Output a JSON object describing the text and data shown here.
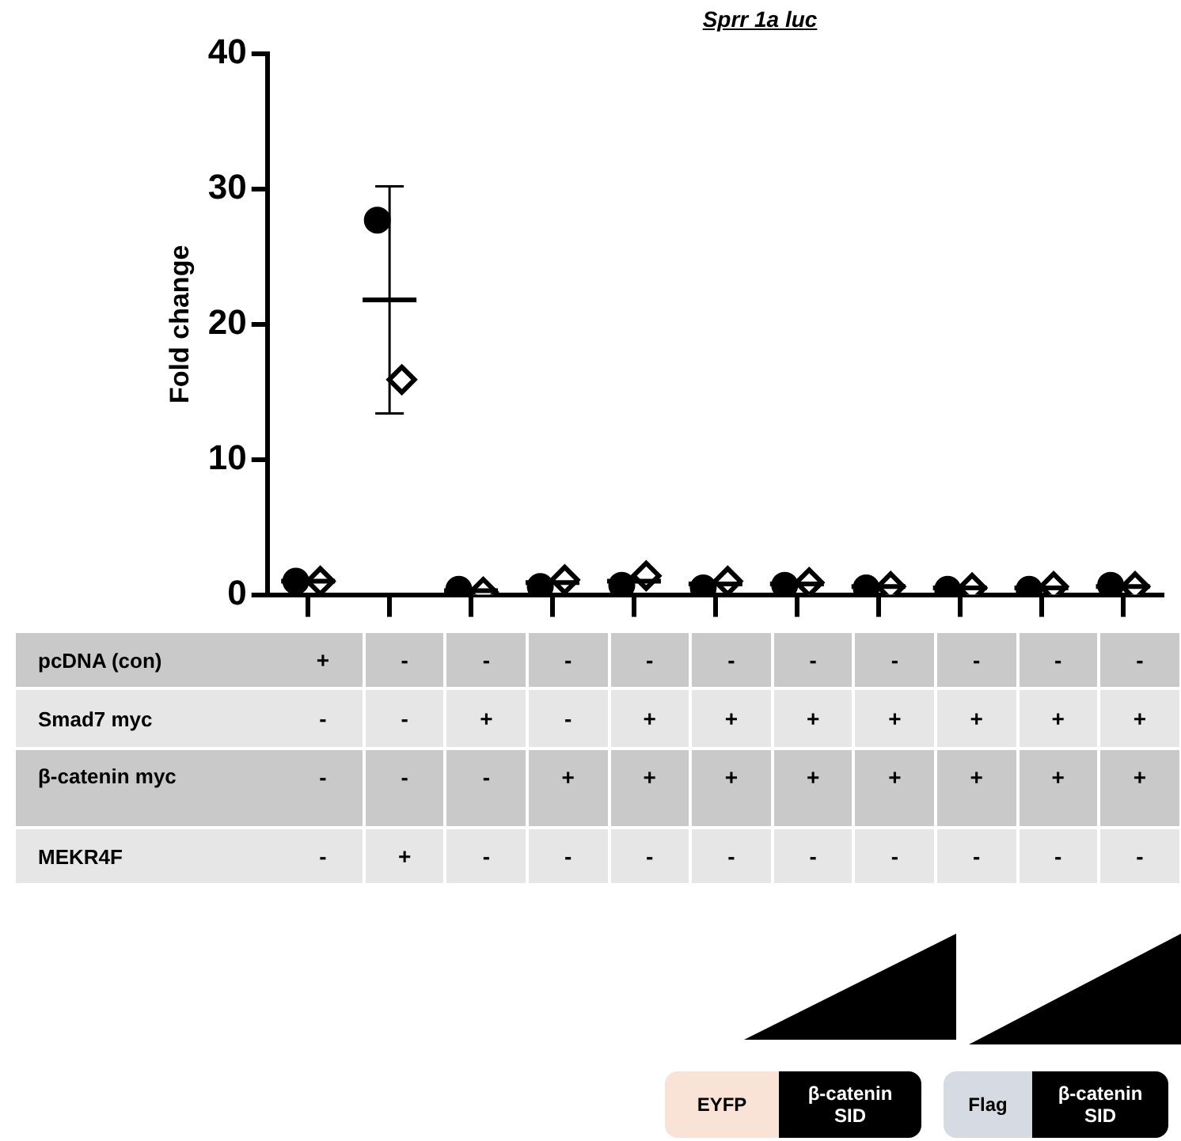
{
  "chart_data": {
    "type": "scatter",
    "title": "Sprr 1a luc",
    "ylabel": "Fold change",
    "categories": [
      "+\n-\n-\n-",
      "-\n-\n-\n+",
      "-\n+\n-\n-",
      "-\n-\n+\n-",
      "-\n+\n+\n-",
      "-\n+\n+\n-",
      "-\n+\n+\n-",
      "-\n+\n+\n-",
      "-\n+\n+\n-",
      "-\n+\n+\n-",
      "-\n+\n+\n-"
    ],
    "series": [
      {
        "color": "#000000",
        "marker": "circle",
        "values": [
          1.0,
          27.7,
          0.4,
          0.6,
          0.7,
          0.5,
          0.7,
          0.5,
          0.4,
          0.4,
          0.7
        ]
      },
      {
        "color": "#000000",
        "marker": "diamond",
        "values": [
          1.0,
          15.9,
          0.2,
          1.1,
          1.4,
          1.0,
          0.9,
          0.6,
          0.5,
          0.6,
          0.6
        ]
      },
      {
        "type": "box",
        "color": "#000000",
        "boxes": [
          {
            "low": 1.0,
            "q1": 1.0,
            "median": 1.0,
            "q3": 1.0,
            "high": 1.0
          },
          {
            "low": 13.4,
            "q1": 21.8,
            "median": 21.8,
            "q3": 21.8,
            "high": 30.2
          },
          {
            "low": 0.3,
            "q1": 0.3,
            "median": 0.3,
            "q3": 0.3,
            "high": 0.3
          },
          {
            "low": 0.9,
            "q1": 0.9,
            "median": 0.9,
            "q3": 0.9,
            "high": 0.9
          },
          {
            "low": 1.0,
            "q1": 1.0,
            "median": 1.0,
            "q3": 1.0,
            "high": 1.0
          },
          {
            "low": 0.8,
            "q1": 0.8,
            "median": 0.8,
            "q3": 0.8,
            "high": 0.8
          },
          {
            "low": 0.8,
            "q1": 0.8,
            "median": 0.8,
            "q3": 0.8,
            "high": 0.8
          },
          {
            "low": 0.6,
            "q1": 0.6,
            "median": 0.6,
            "q3": 0.6,
            "high": 0.6
          },
          {
            "low": 0.5,
            "q1": 0.5,
            "median": 0.5,
            "q3": 0.5,
            "high": 0.5
          },
          {
            "low": 0.5,
            "q1": 0.5,
            "median": 0.5,
            "q3": 0.5,
            "high": 0.5
          },
          {
            "low": 0.6,
            "q1": 0.6,
            "median": 0.6,
            "q3": 0.6,
            "high": 0.6
          }
        ]
      }
    ],
    "ylim": [
      0,
      40
    ],
    "yticks": [
      0,
      10,
      20,
      30,
      40
    ],
    "grid": false,
    "legend": false,
    "annotations": [
      "pcDNA (con)",
      "Smad7 myc",
      "β-catenin myc",
      "MEKR4F",
      "EYFP",
      "β-catenin SID",
      "Flag",
      "β-catenin SID"
    ]
  }
}
